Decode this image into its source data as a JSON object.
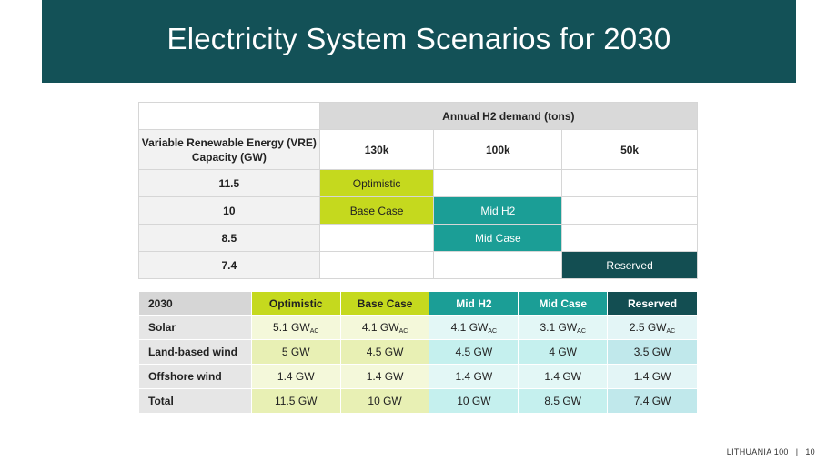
{
  "title": "Electricity System Scenarios for 2030",
  "colors": {
    "title_bg": "#135157",
    "optimistic": "#c5d91e",
    "mid_teal": "#1b9e96",
    "reserved_dark": "#134e52"
  },
  "top_table": {
    "h2_header": "Annual H2 demand (tons)",
    "vre_header": "Variable Renewable Energy (VRE) Capacity (GW)",
    "demand_cols": [
      "130k",
      "100k",
      "50k"
    ],
    "rows": [
      {
        "vre": "11.5",
        "c130": "Optimistic",
        "c100": "",
        "c50": ""
      },
      {
        "vre": "10",
        "c130": "Base Case",
        "c100": "Mid H2",
        "c50": ""
      },
      {
        "vre": "8.5",
        "c130": "",
        "c100": "Mid Case",
        "c50": ""
      },
      {
        "vre": "7.4",
        "c130": "",
        "c100": "",
        "c50": "Reserved"
      }
    ]
  },
  "bottom_table": {
    "corner": "2030",
    "headers": [
      "Optimistic",
      "Base Case",
      "Mid H2",
      "Mid Case",
      "Reserved"
    ],
    "unit_sub": "AC",
    "rows": [
      {
        "label": "Solar",
        "values": [
          "5.1 GW",
          "4.1 GW",
          "4.1 GW",
          "3.1 GW",
          "2.5 GW"
        ]
      },
      {
        "label": "Land-based wind",
        "values": [
          "5 GW",
          "4.5 GW",
          "4.5 GW",
          "4 GW",
          "3.5 GW"
        ]
      },
      {
        "label": "Offshore wind",
        "values": [
          "1.4 GW",
          "1.4 GW",
          "1.4 GW",
          "1.4 GW",
          "1.4 GW"
        ]
      },
      {
        "label": "Total",
        "values": [
          "11.5 GW",
          "10 GW",
          "10 GW",
          "8.5 GW",
          "7.4 GW"
        ]
      }
    ]
  },
  "footer": {
    "brand": "LITHUANIA 100",
    "separator": "|",
    "page": "10"
  }
}
